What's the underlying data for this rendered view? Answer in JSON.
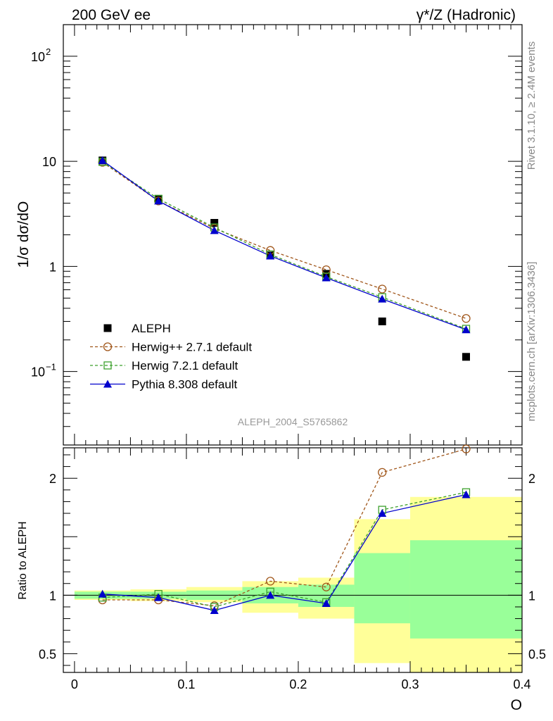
{
  "header": {
    "left_title": "200 GeV ee",
    "right_title": "γ*/Z (Hadronic)"
  },
  "side_labels": {
    "rivet": "Rivet 3.1.10, ≥ 2.4M events",
    "mcplots": "mcplots.cern.ch [arXiv:1306.3436]"
  },
  "watermark": "ALEPH_2004_S5765862",
  "colors": {
    "aleph": "#000000",
    "herwigpp": "#a0561a",
    "herwig7": "#3ca02c",
    "pythia": "#0000cc",
    "band_outer": "#ffff99",
    "band_inner": "#99ff99"
  },
  "chart_data": [
    {
      "type": "scatter",
      "panel": "main",
      "ylabel": "1/σ dσ/dO",
      "yscale": "log",
      "ylim": [
        0.02,
        200
      ],
      "xlim": [
        -0.01,
        0.4
      ],
      "y_ticks": [
        {
          "value": 0.1,
          "label": "10",
          "exp": "−1"
        },
        {
          "value": 1,
          "label": "1",
          "exp": ""
        },
        {
          "value": 10,
          "label": "10",
          "exp": ""
        },
        {
          "value": 100,
          "label": "10",
          "exp": "2"
        }
      ],
      "x": [
        0.025,
        0.075,
        0.125,
        0.175,
        0.225,
        0.275,
        0.35
      ],
      "x_edges": [
        0,
        0.05,
        0.1,
        0.15,
        0.2,
        0.25,
        0.3,
        0.4
      ],
      "legend_position": "bottom-left",
      "series": [
        {
          "name": "ALEPH",
          "values": [
            10.2,
            4.4,
            2.6,
            1.27,
            0.85,
            0.3,
            0.138
          ]
        },
        {
          "name": "Herwig++ 2.7.1 default",
          "values": [
            9.8,
            4.2,
            2.3,
            1.42,
            0.93,
            0.61,
            0.32
          ]
        },
        {
          "name": "Herwig 7.2.1 default",
          "values": [
            9.9,
            4.4,
            2.35,
            1.3,
            0.8,
            0.51,
            0.255
          ]
        },
        {
          "name": "Pythia 8.308 default",
          "values": [
            10.2,
            4.2,
            2.2,
            1.26,
            0.78,
            0.49,
            0.25
          ]
        }
      ]
    },
    {
      "type": "line",
      "panel": "ratio",
      "ylabel": "Ratio to ALEPH",
      "ylim": [
        0.34,
        2.26
      ],
      "xlabel": "O",
      "xlim": [
        -0.01,
        0.4
      ],
      "x_ticks": [
        {
          "value": 0,
          "label": "0"
        },
        {
          "value": 0.1,
          "label": "0.1"
        },
        {
          "value": 0.2,
          "label": "0.2"
        },
        {
          "value": 0.3,
          "label": "0.3"
        },
        {
          "value": 0.4,
          "label": "0.4"
        }
      ],
      "y_ticks": [
        {
          "value": 0.5,
          "label": "0.5"
        },
        {
          "value": 1,
          "label": "1"
        },
        {
          "value": 2,
          "label": "2"
        }
      ],
      "x": [
        0.025,
        0.075,
        0.125,
        0.175,
        0.225,
        0.275,
        0.35
      ],
      "bands": [
        {
          "x0": 0.0,
          "x1": 0.05,
          "outer": [
            0.96,
            1.04
          ],
          "inner": [
            0.97,
            1.03
          ]
        },
        {
          "x0": 0.05,
          "x1": 0.1,
          "outer": [
            0.95,
            1.05
          ],
          "inner": [
            0.97,
            1.03
          ]
        },
        {
          "x0": 0.1,
          "x1": 0.15,
          "outer": [
            0.94,
            1.07
          ],
          "inner": [
            0.96,
            1.04
          ]
        },
        {
          "x0": 0.15,
          "x1": 0.2,
          "outer": [
            0.85,
            1.12
          ],
          "inner": [
            0.93,
            1.07
          ]
        },
        {
          "x0": 0.2,
          "x1": 0.25,
          "outer": [
            0.8,
            1.15
          ],
          "inner": [
            0.9,
            1.09
          ]
        },
        {
          "x0": 0.25,
          "x1": 0.3,
          "outer": [
            0.42,
            1.65
          ],
          "inner": [
            0.76,
            1.36
          ]
        },
        {
          "x0": 0.3,
          "x1": 0.4,
          "outer": [
            0.34,
            1.84
          ],
          "inner": [
            0.63,
            1.47
          ]
        }
      ],
      "series": [
        {
          "name": "Herwig++ 2.7.1 default",
          "values": [
            0.96,
            0.96,
            0.91,
            1.12,
            1.07,
            2.05,
            2.25
          ]
        },
        {
          "name": "Herwig 7.2.1 default",
          "values": [
            0.98,
            1.01,
            0.9,
            1.03,
            0.94,
            1.73,
            1.88
          ]
        },
        {
          "name": "Pythia 8.308 default",
          "values": [
            1.01,
            0.98,
            0.87,
            1.0,
            0.93,
            1.7,
            1.86
          ]
        }
      ]
    }
  ]
}
